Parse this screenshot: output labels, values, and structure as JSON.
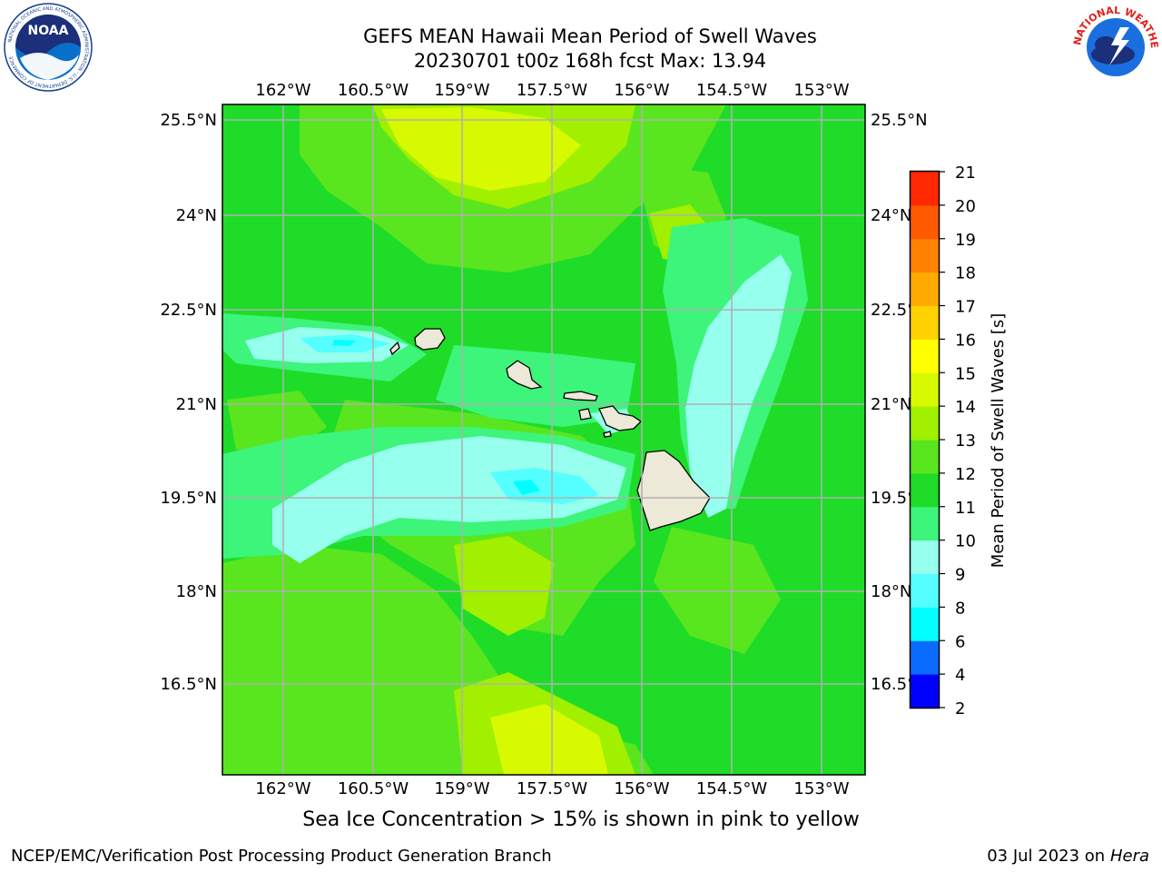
{
  "title": {
    "line1": "GEFS MEAN Hawaii Mean Period of Swell Waves",
    "line2": "20230701 t00z 168h fcst   Max: 13.94"
  },
  "subtitle": "Sea Ice Concentration > 15% is shown in pink to yellow",
  "footer": {
    "left": "NCEP/EMC/Verification Post Processing Product Generation Branch",
    "right_date": "03 Jul 2023 on ",
    "right_host": "Hera"
  },
  "logos": {
    "left": {
      "text": "NOAA",
      "ring_text": "NATIONAL OCEANIC AND ATMOSPHERIC ADMINISTRATION · U.S. DEPARTMENT OF COMMERCE",
      "color": "#0a5fb4"
    },
    "right": {
      "ring_text": "NATIONAL WEATHER SERVICE",
      "color": "#e0201c"
    }
  },
  "map": {
    "lon_ticks": [
      "162°W",
      "160.5°W",
      "159°W",
      "157.5°W",
      "156°W",
      "154.5°W",
      "153°W"
    ],
    "lat_ticks": [
      "25.5°N",
      "24°N",
      "22.5°N",
      "21°N",
      "19.5°N",
      "18°N",
      "16.5°N"
    ],
    "land_color": "#ece9d8",
    "grid_color": "#b0b0b0"
  },
  "colorbar": {
    "label": "Mean Period of Swell Waves [s]",
    "ticks": [
      "2",
      "4",
      "6",
      "8",
      "9",
      "10",
      "11",
      "12",
      "13",
      "14",
      "15",
      "16",
      "17",
      "18",
      "19",
      "20",
      "21"
    ],
    "colors": [
      "#0000ff",
      "#0a6cff",
      "#00ffff",
      "#55ffff",
      "#96ffee",
      "#3cf57a",
      "#1edc28",
      "#5ae61e",
      "#a0f000",
      "#d7fa00",
      "#ffff00",
      "#ffd200",
      "#ffaa00",
      "#ff8200",
      "#ff5a00",
      "#ff2800"
    ]
  }
}
